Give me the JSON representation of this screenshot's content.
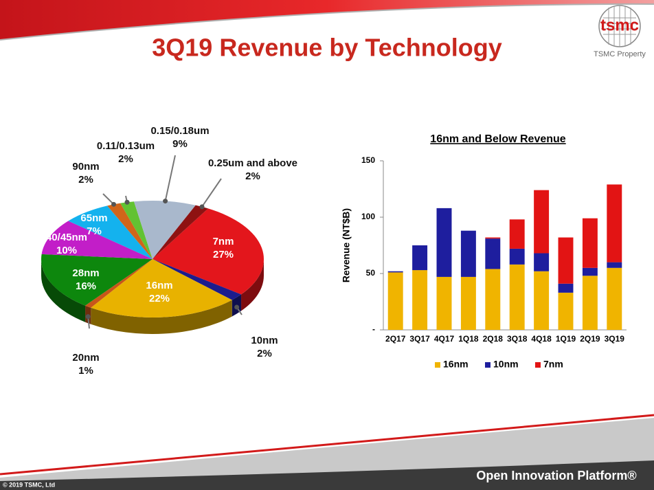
{
  "slide": {
    "title": "3Q19 Revenue by Technology",
    "logo": "tsmc",
    "property": "TSMC Property",
    "copyright": "© 2019 TSMC, Ltd",
    "platform": "Open Innovation Platform®"
  },
  "chart_data": [
    {
      "type": "pie",
      "labels": [
        "7nm",
        "10nm",
        "16nm",
        "20nm",
        "28nm",
        "40/45nm",
        "65nm",
        "90nm",
        "0.11/0.13um",
        "0.15/0.18um",
        "0.25um and above"
      ],
      "values": [
        27,
        2,
        22,
        1,
        16,
        10,
        7,
        2,
        2,
        9,
        2
      ],
      "value_labels": [
        "27%",
        "2%",
        "22%",
        "1%",
        "16%",
        "10%",
        "7%",
        "2%",
        "2%",
        "9%",
        "2%"
      ],
      "colors": [
        "#e3161c",
        "#1c1c8e",
        "#e8b200",
        "#c8561a",
        "#0d870d",
        "#c21ec8",
        "#14b2ee",
        "#d0651a",
        "#62c232",
        "#a9b8cc",
        "#8e1212"
      ]
    },
    {
      "type": "bar",
      "title": "16nm and Below Revenue",
      "y_label": "Revenue (NT$B)",
      "categories": [
        "2Q17",
        "3Q17",
        "4Q17",
        "1Q18",
        "2Q18",
        "3Q18",
        "4Q18",
        "1Q19",
        "2Q19",
        "3Q19"
      ],
      "series": [
        {
          "name": "16nm",
          "color": "#f0b400",
          "values": [
            51,
            53,
            47,
            47,
            54,
            58,
            52,
            33,
            48,
            55
          ]
        },
        {
          "name": "10nm",
          "color": "#1e1e9e",
          "values": [
            1,
            22,
            61,
            41,
            27,
            14,
            16,
            8,
            7,
            5
          ]
        },
        {
          "name": "7nm",
          "color": "#e21414",
          "values": [
            0,
            0,
            0,
            0,
            1,
            26,
            56,
            41,
            44,
            69
          ]
        }
      ],
      "ylim": [
        0,
        150
      ],
      "yticks": [
        {
          "value": 0,
          "label": "-"
        },
        50,
        100,
        150
      ],
      "legend": "bottom"
    }
  ]
}
